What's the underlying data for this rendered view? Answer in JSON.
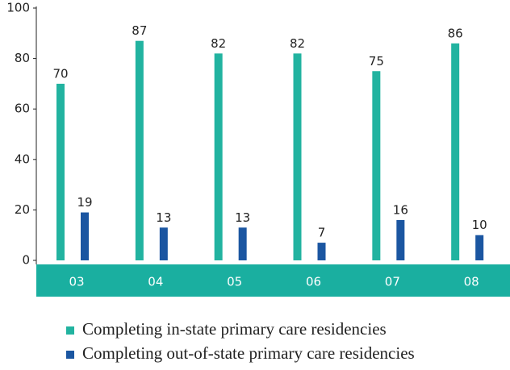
{
  "chart_data": {
    "type": "bar",
    "categories": [
      "03",
      "04",
      "05",
      "06",
      "07",
      "08"
    ],
    "series": [
      {
        "name": "Completing in-state primary care residencies",
        "color": "#22b3a0",
        "values": [
          70,
          87,
          82,
          82,
          75,
          86
        ]
      },
      {
        "name": "Completing out-of-state primary care residencies",
        "color": "#1b56a1",
        "values": [
          19,
          13,
          13,
          7,
          16,
          10
        ]
      }
    ],
    "ylim": [
      0,
      100
    ],
    "yticks": [
      0,
      20,
      40,
      60,
      80,
      100
    ],
    "grid": false,
    "legend": "bottom"
  }
}
